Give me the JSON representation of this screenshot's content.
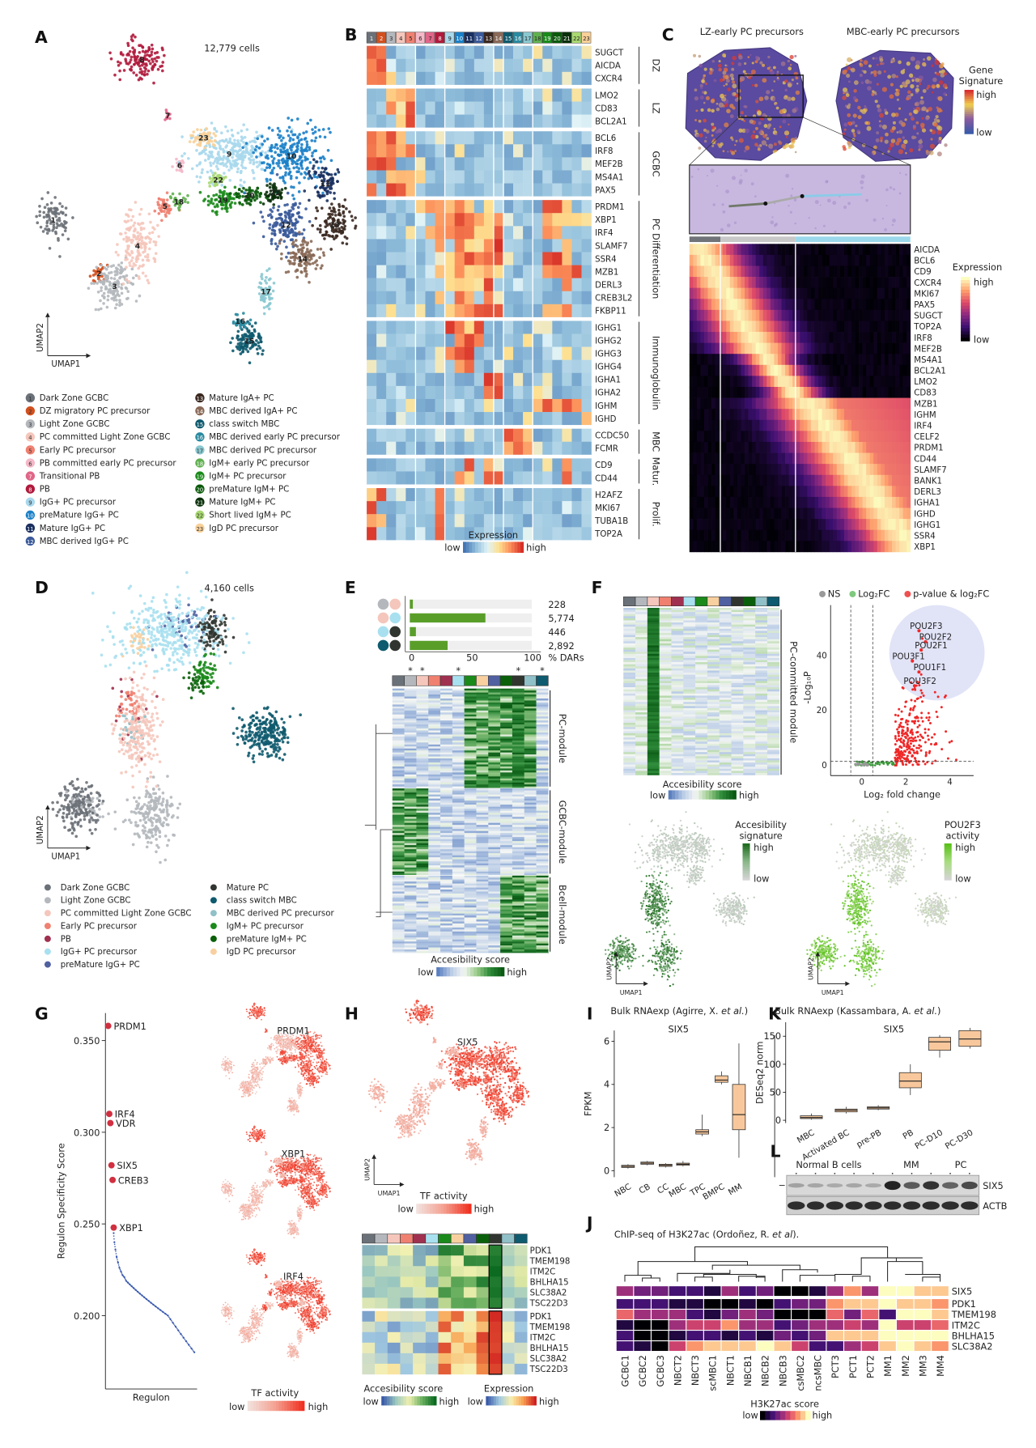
{
  "panel_letters": {
    "A": "A",
    "B": "B",
    "C": "C",
    "D": "D",
    "E": "E",
    "F": "F",
    "G": "G",
    "H": "H",
    "I": "I",
    "J": "J",
    "K": "K",
    "L": "L"
  },
  "A": {
    "title": "12,779 cells",
    "xaxis": "UMAP1",
    "yaxis": "UMAP2",
    "legend": [
      {
        "num": "1",
        "label": "Dark Zone GCBC",
        "color": "#6b7178"
      },
      {
        "num": "2",
        "label": "DZ migratory PC precursor",
        "color": "#d2501e"
      },
      {
        "num": "3",
        "label": "Light Zone GCBC",
        "color": "#b4b8bd"
      },
      {
        "num": "4",
        "label": "PC committed Light Zone GCBC",
        "color": "#f5c6bb"
      },
      {
        "num": "5",
        "label": "Early PC precursor",
        "color": "#f08070"
      },
      {
        "num": "6",
        "label": "PB committed early PC precursor",
        "color": "#f4b8c8"
      },
      {
        "num": "7",
        "label": "Transitional PB",
        "color": "#e06688"
      },
      {
        "num": "8",
        "label": "PB",
        "color": "#b01a3c"
      },
      {
        "num": "9",
        "label": "IgG+ PC precursor",
        "color": "#a8d8ec"
      },
      {
        "num": "10",
        "label": "preMature IgG+ PC",
        "color": "#1a80c8"
      },
      {
        "num": "11",
        "label": "Mature IgG+ PC",
        "color": "#1a3060"
      },
      {
        "num": "12",
        "label": "MBC derived IgG+ PC",
        "color": "#3a5a9a"
      },
      {
        "num": "13",
        "label": "Mature IgA+ PC",
        "color": "#3a2820"
      },
      {
        "num": "14",
        "label": "MBC derived IgA+ PC",
        "color": "#8a6a58"
      },
      {
        "num": "15",
        "label": "class switch MBC",
        "color": "#0e5a6e"
      },
      {
        "num": "16",
        "label": "MBC derived early PC precursor",
        "color": "#2a8aa0"
      },
      {
        "num": "17",
        "label": "MBC derived PC precursor",
        "color": "#8ac8d0"
      },
      {
        "num": "18",
        "label": "IgM+ early PC precursor",
        "color": "#60b050"
      },
      {
        "num": "19",
        "label": "IgM+ PC precursor",
        "color": "#1a8a1a"
      },
      {
        "num": "20",
        "label": "preMature IgM+ PC",
        "color": "#0a5a0a"
      },
      {
        "num": "21",
        "label": "Mature IgM+ PC",
        "color": "#0a300a"
      },
      {
        "num": "22",
        "label": "Short lived IgM+ PC",
        "color": "#a8d870"
      },
      {
        "num": "23",
        "label": "IgD PC precursor",
        "color": "#f8d098"
      }
    ]
  },
  "B": {
    "groups": [
      {
        "name": "DZ",
        "genes": [
          "SUGCT",
          "AICDA",
          "CXCR4"
        ]
      },
      {
        "name": "LZ",
        "genes": [
          "LMO2",
          "CD83",
          "BCL2A1"
        ]
      },
      {
        "name": "GCBC",
        "genes": [
          "BCL6",
          "IRF8",
          "MEF2B",
          "MS4A1",
          "PAX5"
        ]
      },
      {
        "name": "PC Differentiation",
        "genes": [
          "PRDM1",
          "XBP1",
          "IRF4",
          "SLAMF7",
          "SSR4",
          "MZB1",
          "DERL3",
          "CREB3L2",
          "FKBP11"
        ]
      },
      {
        "name": "Immunoglobulin",
        "genes": [
          "IGHG1",
          "IGHG2",
          "IGHG3",
          "IGHG4",
          "IGHA1",
          "IGHA2",
          "IGHM",
          "IGHD"
        ]
      },
      {
        "name": "MBC",
        "genes": [
          "CCDC50",
          "FCMR"
        ]
      },
      {
        "name": "Matur.",
        "genes": [
          "CD9",
          "CD44"
        ]
      },
      {
        "name": "Prolif.",
        "genes": [
          "H2AFZ",
          "MKI67",
          "TUBA1B",
          "TOP2A"
        ]
      }
    ],
    "legend_title": "Expression",
    "low": "low",
    "high": "high"
  },
  "C": {
    "title_left": "LZ-early PC precursors",
    "title_right": "MBC-early PC precursors",
    "sig_title_1": "Gene",
    "sig_title_2": "Signature",
    "sig_high": "high",
    "sig_low": "low",
    "genes": [
      "AICDA",
      "BCL6",
      "CD9",
      "CXCR4",
      "MKI67",
      "PAX5",
      "SUGCT",
      "TOP2A",
      "IRF8",
      "MEF2B",
      "MS4A1",
      "BCL2A1",
      "LMO2",
      "CD83",
      "MZB1",
      "IGHM",
      "IRF4",
      "CELF2",
      "PRDM1",
      "CD44",
      "SLAMF7",
      "BANK1",
      "DERL3",
      "IGHA1",
      "IGHD",
      "IGHG1",
      "SSR4",
      "XBP1"
    ],
    "expr_title": "Expression",
    "expr_high": "high",
    "expr_low": "low"
  },
  "D": {
    "title": "4,160 cells",
    "xaxis": "UMAP1",
    "yaxis": "UMAP2",
    "legend": [
      {
        "label": "Dark Zone GCBC",
        "color": "#6b7178"
      },
      {
        "label": "Light Zone GCBC",
        "color": "#b4b8bd"
      },
      {
        "label": "PC committed Light Zone GCBC",
        "color": "#f5c6bb"
      },
      {
        "label": "Early PC precursor",
        "color": "#f08070"
      },
      {
        "label": "PB",
        "color": "#a03050"
      },
      {
        "label": "IgG+ PC precursor",
        "color": "#a8e0f0"
      },
      {
        "label": "preMature IgG+ PC",
        "color": "#5060a0"
      },
      {
        "label": "Mature PC",
        "color": "#303530"
      },
      {
        "label": "class switch MBC",
        "color": "#0e5a6e"
      },
      {
        "label": "MBC derived PC precursor",
        "color": "#90c0c8"
      },
      {
        "label": "IgM+ PC precursor",
        "color": "#1a8a1a"
      },
      {
        "label": "preMature IgM+ PC",
        "color": "#0a600a"
      },
      {
        "label": "IgD PC precursor",
        "color": "#f8d0a0"
      }
    ]
  },
  "E": {
    "column_colors": [
      "#6b7178",
      "#b4b8bd",
      "#f5c6bb",
      "#f08070",
      "#a03050",
      "#a8e0f0",
      "#1a8a1a",
      "#f8d0a0",
      "#5060a0",
      "#0a600a",
      "#303530",
      "#90c0c8",
      "#0e5a6e"
    ],
    "asterisk": "*",
    "modules": [
      "PC-module",
      "GCBC-module",
      "Bcell-module"
    ],
    "legend_title": "Accesibility score",
    "low": "low",
    "high": "high"
  },
  "F": {
    "column_colors": [
      "#6b7178",
      "#b4b8bd",
      "#f5c6bb",
      "#f08070",
      "#a03050",
      "#a8e0f0",
      "#1a8a1a",
      "#f8d0a0",
      "#5060a0",
      "#303530",
      "#0a600a",
      "#90c0c8",
      "#0e5a6e"
    ],
    "module_label": "PC-committed module",
    "legend_title": "Accesibility score",
    "low": "low",
    "high": "high",
    "umap1": {
      "title_1": "Accesibility",
      "title_2": "signature",
      "high": "high",
      "low": "low",
      "xaxis": "UMAP1",
      "yaxis": "UMAP2"
    },
    "umap2": {
      "title_1": "POU2F3",
      "title_2": "activity",
      "high": "high",
      "low": "low",
      "xaxis": "UMAP1",
      "yaxis": "UMAP2"
    }
  },
  "G": {
    "umap_labels": [
      "PRDM1",
      "XBP1",
      "IRF4"
    ],
    "legend_title": "TF activity",
    "low": "low",
    "high": "high"
  },
  "H": {
    "umap_label": "SIX5",
    "xaxis": "UMAP1",
    "yaxis": "UMAP2",
    "tf_title": "TF activity",
    "tf_low": "low",
    "tf_high": "high",
    "column_colors": [
      "#6b7178",
      "#b4b8bd",
      "#f5c6bb",
      "#f08070",
      "#a03050",
      "#a8e0f0",
      "#1a8a1a",
      "#f8d0a0",
      "#5060a0",
      "#0a600a",
      "#303530",
      "#90c0c8",
      "#0e5a6e"
    ],
    "genes": [
      "PDK1",
      "TMEM198",
      "ITM2C",
      "BHLHA15",
      "SLC38A2",
      "TSC22D3"
    ],
    "acc_title": "Accesibility score",
    "acc_low": "low",
    "acc_high": "high",
    "expr_title": "Expression",
    "expr_low": "low",
    "expr_high": "high"
  },
  "L": {
    "groups": [
      "Normal B cells",
      "MM",
      "PC"
    ],
    "bands": [
      "SIX5",
      "ACTB"
    ],
    "lane_group": [
      "normal",
      "normal",
      "normal",
      "normal",
      "normal",
      "MM",
      "MM",
      "MM",
      "PC",
      "PC"
    ],
    "six5_intensity": [
      0.15,
      0.12,
      0.1,
      0.12,
      0.1,
      0.95,
      0.6,
      0.85,
      0.55,
      0.7
    ]
  },
  "chart_data": [
    {
      "panel": "E",
      "type": "bar",
      "categories": [
        "Light Zone GCBC vs PC committed Light Zone GCBC",
        "PC committed Light Zone GCBC vs IgG+ PC precursor",
        "IgG+ PC precursor vs Mature PC",
        "class switch MBC vs Mature PC"
      ],
      "pairs": [
        [
          "#b4b8bd",
          "#f5c6bb"
        ],
        [
          "#f5c6bb",
          "#a8e0f0"
        ],
        [
          "#a8e0f0",
          "#303530"
        ],
        [
          "#0e5a6e",
          "#303530"
        ]
      ],
      "counts": [
        "228",
        "5,774",
        "446",
        "2,892"
      ],
      "values": [
        2.5,
        62,
        5,
        31
      ],
      "xlabel": "% DARs",
      "xticks": [
        "0",
        "50",
        "100"
      ],
      "xlim": [
        0,
        100
      ],
      "bar_color": "#5a9e2a"
    },
    {
      "panel": "F",
      "type": "scatter",
      "legend": [
        "NS",
        "Log₂FC",
        "p-value & log₂FC"
      ],
      "legend_colors": [
        "#999999",
        "#7fc97f",
        "#f05050"
      ],
      "xlabel": "Log₂ fold change",
      "ylabel": "-Log₁₀P",
      "xticks": [
        "0",
        "2",
        "4"
      ],
      "yticks": [
        "0",
        "20",
        "40"
      ],
      "xlim": [
        -1.4,
        4.8
      ],
      "ylim": [
        -2,
        55
      ],
      "labeled_points": [
        {
          "label": "POU2F3",
          "x": 2.6,
          "y": 49
        },
        {
          "label": "POU2F2",
          "x": 2.9,
          "y": 45
        },
        {
          "label": "POU2F1",
          "x": 2.7,
          "y": 42
        },
        {
          "label": "POU3F1",
          "x": 2.3,
          "y": 38
        },
        {
          "label": "POU1F1",
          "x": 2.6,
          "y": 34
        },
        {
          "label": "POU3F2",
          "x": 2.4,
          "y": 29
        }
      ]
    },
    {
      "panel": "G",
      "type": "scatter",
      "xlabel": "Regulon",
      "ylabel": "Regulon Specificity Score",
      "yticks": [
        "0.200",
        "0.250",
        "0.300",
        "0.350"
      ],
      "ylim": [
        0.175,
        0.365
      ],
      "labeled_points": [
        {
          "label": "PRDM1",
          "y": 0.358
        },
        {
          "label": "IRF4",
          "y": 0.31
        },
        {
          "label": "VDR",
          "y": 0.305
        },
        {
          "label": "SIX5",
          "y": 0.282
        },
        {
          "label": "CREB3",
          "y": 0.274
        },
        {
          "label": "XBP1",
          "y": 0.248
        }
      ],
      "remaining_values": [
        0.245,
        0.24,
        0.236,
        0.232,
        0.229,
        0.226,
        0.224,
        0.222,
        0.221,
        0.219,
        0.218,
        0.217,
        0.216,
        0.215,
        0.214,
        0.213,
        0.212,
        0.211,
        0.21,
        0.209,
        0.208,
        0.207,
        0.206,
        0.205,
        0.204,
        0.203,
        0.202,
        0.201,
        0.2,
        0.198,
        0.196,
        0.194,
        0.192,
        0.19,
        0.188,
        0.186,
        0.184,
        0.182,
        0.18
      ]
    },
    {
      "panel": "I",
      "type": "box",
      "title": "Bulk RNAexp (Agirre, X. ",
      "title_italic": "et al.",
      "title_end": ")",
      "subtitle": "SIX5",
      "ylabel": "FPKM",
      "yticks": [
        "0",
        "2",
        "4",
        "6"
      ],
      "ylim": [
        -0.3,
        6.5
      ],
      "categories": [
        "NBC",
        "CB",
        "CC",
        "MBC",
        "TPC",
        "BMPC",
        "MM"
      ],
      "boxes": [
        {
          "min": 0.1,
          "q1": 0.15,
          "median": 0.2,
          "q3": 0.25,
          "max": 0.3
        },
        {
          "min": 0.25,
          "q1": 0.3,
          "median": 0.35,
          "q3": 0.4,
          "max": 0.45
        },
        {
          "min": 0.15,
          "q1": 0.2,
          "median": 0.25,
          "q3": 0.3,
          "max": 0.35
        },
        {
          "min": 0.2,
          "q1": 0.25,
          "median": 0.3,
          "q3": 0.35,
          "max": 0.45
        },
        {
          "min": 1.6,
          "q1": 1.7,
          "median": 1.8,
          "q3": 1.9,
          "max": 2.6
        },
        {
          "min": 4.0,
          "q1": 4.1,
          "median": 4.2,
          "q3": 4.4,
          "max": 4.6
        },
        {
          "min": 0.6,
          "q1": 1.9,
          "median": 2.6,
          "q3": 4.0,
          "max": 5.9
        }
      ]
    },
    {
      "panel": "K",
      "type": "box",
      "title": "Bulk RNAexp (Kassambara, A. ",
      "title_italic": "et al.",
      "title_end": ")",
      "subtitle": "SIX5",
      "ylabel": "DESeq2 norm",
      "yticks": [
        "0",
        "50",
        "100",
        "150"
      ],
      "ylim": [
        -5,
        175
      ],
      "categories": [
        "MBC",
        "Activated BC",
        "pre-PB",
        "PB",
        "PC-D10",
        "PC-D30"
      ],
      "boxes": [
        {
          "min": 1,
          "q1": 3,
          "median": 5,
          "q3": 8,
          "max": 12
        },
        {
          "min": 12,
          "q1": 15,
          "median": 18,
          "q3": 20,
          "max": 24
        },
        {
          "min": 18,
          "q1": 20,
          "median": 22,
          "q3": 24,
          "max": 27
        },
        {
          "min": 45,
          "q1": 58,
          "median": 70,
          "q3": 85,
          "max": 100
        },
        {
          "min": 112,
          "q1": 125,
          "median": 140,
          "q3": 148,
          "max": 152
        },
        {
          "min": 128,
          "q1": 132,
          "median": 145,
          "q3": 160,
          "max": 165
        }
      ]
    },
    {
      "panel": "J",
      "type": "heatmap",
      "title": "ChIP-seq of H3K27ac (Ordoñez, R. ",
      "title_italic": "et al",
      "title_end": ").",
      "columns": [
        "GCBC1",
        "GCBC2",
        "GCBC3",
        "NBCT2",
        "NBCT3",
        "scMBC1",
        "NBCT1",
        "NBCB1",
        "NBCB2",
        "NBCB3",
        "csMBC2",
        "ncsMBC",
        "PCT3",
        "PCT1",
        "PCT2",
        "MM1",
        "MM2",
        "MM3",
        "MM4"
      ],
      "rows": [
        "SIX5",
        "PDK1",
        "TMEM198",
        "ITM2C",
        "BHLHA15",
        "SLC38A2"
      ],
      "score_levels_0_to_9": [
        [
          4,
          3,
          3,
          2,
          2,
          1,
          4,
          2,
          3,
          0,
          0,
          1,
          4,
          7,
          4,
          9,
          9,
          8,
          8
        ],
        [
          2,
          2,
          2,
          1,
          1,
          0,
          0,
          1,
          0,
          2,
          3,
          3,
          7,
          8,
          8,
          9,
          8,
          8,
          7
        ],
        [
          6,
          4,
          4,
          4,
          2,
          1,
          3,
          4,
          3,
          0,
          0,
          0,
          6,
          3,
          6,
          2,
          9,
          9,
          8
        ],
        [
          1,
          0,
          0,
          4,
          5,
          5,
          7,
          4,
          4,
          2,
          3,
          4,
          4,
          5,
          4,
          9,
          5,
          5,
          6
        ],
        [
          2,
          0,
          0,
          1,
          2,
          2,
          1,
          2,
          1,
          3,
          2,
          3,
          8,
          8,
          8,
          9,
          9,
          9,
          9
        ],
        [
          2,
          1,
          0,
          5,
          7,
          8,
          8,
          8,
          9,
          8,
          5,
          2,
          2,
          4,
          5,
          8,
          9,
          8,
          7
        ]
      ],
      "legend_title": "H3K27ac score",
      "low": "low",
      "high": "high"
    }
  ]
}
